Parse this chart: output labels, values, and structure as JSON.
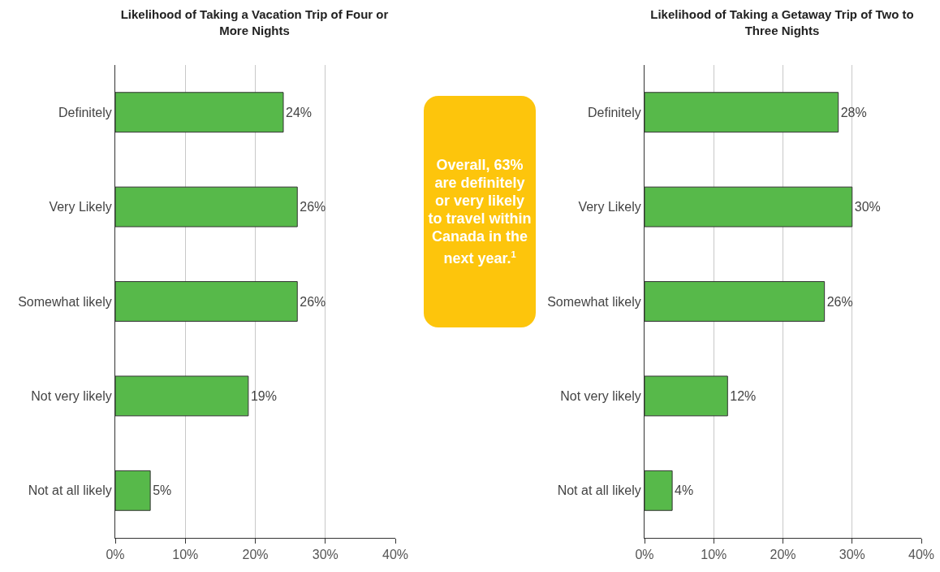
{
  "chart_data": [
    {
      "type": "bar",
      "orientation": "horizontal",
      "title": "Likelihood of Taking a Vacation Trip of Four or More Nights",
      "categories": [
        "Definitely",
        "Very Likely",
        "Somewhat likely",
        "Not very likely",
        "Not at all likely"
      ],
      "values": [
        24,
        26,
        26,
        19,
        5
      ],
      "value_labels": [
        "24%",
        "26%",
        "26%",
        "19%",
        "5%"
      ],
      "color": "#57b94a",
      "xlim": [
        0,
        40
      ],
      "xticks": [
        {
          "value": 0,
          "label": "0%"
        },
        {
          "value": 10,
          "label": "10%"
        },
        {
          "value": 20,
          "label": "20%"
        },
        {
          "value": 30,
          "label": "30%"
        },
        {
          "value": 40,
          "label": "40%"
        }
      ],
      "grid": "x",
      "legend": false
    },
    {
      "type": "other",
      "color": "#fdc50c",
      "annotations": [
        "Overall, 63% are definitely or very likely to travel within Canada in the next year.$^{1}$"
      ]
    },
    {
      "type": "bar",
      "orientation": "horizontal",
      "title": "Likelihood of Taking a Getaway Trip of Two to Three Nights",
      "categories": [
        "Definitely",
        "Very Likely",
        "Somewhat likely",
        "Not very likely",
        "Not at all likely"
      ],
      "values": [
        28,
        30,
        26,
        12,
        4
      ],
      "value_labels": [
        "28%",
        "30%",
        "26%",
        "12%",
        "4%"
      ],
      "color": "#57b94a",
      "xlim": [
        0,
        40
      ],
      "xticks": [
        {
          "value": 0,
          "label": "0%"
        },
        {
          "value": 10,
          "label": "10%"
        },
        {
          "value": 20,
          "label": "20%"
        },
        {
          "value": 30,
          "label": "30%"
        },
        {
          "value": 40,
          "label": "40%"
        }
      ],
      "grid": "x",
      "legend": false
    }
  ]
}
